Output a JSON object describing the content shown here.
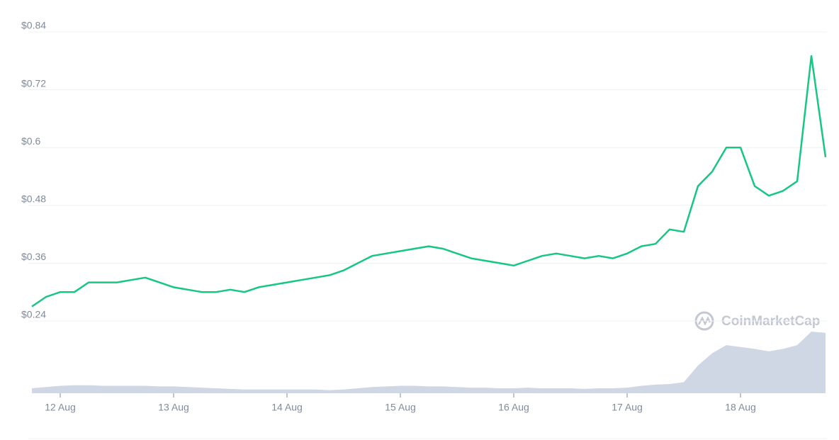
{
  "chart_data": {
    "type": "line",
    "watermark": "CoinMarketCap",
    "categories": [
      null,
      null,
      "12 Aug",
      null,
      null,
      null,
      null,
      null,
      null,
      null,
      "13 Aug",
      null,
      null,
      null,
      null,
      null,
      null,
      null,
      "14 Aug",
      null,
      null,
      null,
      null,
      null,
      null,
      null,
      "15 Aug",
      null,
      null,
      null,
      null,
      null,
      null,
      null,
      "16 Aug",
      null,
      null,
      null,
      null,
      null,
      null,
      null,
      "17 Aug",
      null,
      null,
      null,
      null,
      null,
      null,
      null,
      "18 Aug",
      null,
      null,
      null,
      null,
      null,
      null
    ],
    "series": [
      {
        "color": "#16c784",
        "values": [
          0.27,
          0.29,
          0.3,
          0.3,
          0.32,
          0.32,
          0.32,
          0.325,
          0.33,
          0.32,
          0.31,
          0.305,
          0.3,
          0.3,
          0.305,
          0.3,
          0.31,
          0.315,
          0.32,
          0.325,
          0.33,
          0.335,
          0.345,
          0.36,
          0.375,
          0.38,
          0.385,
          0.39,
          0.395,
          0.39,
          0.38,
          0.37,
          0.365,
          0.36,
          0.355,
          0.365,
          0.375,
          0.38,
          0.375,
          0.37,
          0.375,
          0.37,
          0.38,
          0.395,
          0.4,
          0.43,
          0.425,
          0.52,
          0.55,
          0.6,
          0.6,
          0.52,
          0.5,
          0.51,
          0.53,
          0.79,
          0.58
        ]
      },
      {
        "color": "#cfd6e4",
        "axis": "y2",
        "values": [
          8,
          10,
          12,
          13,
          13,
          12,
          12,
          12,
          12,
          11,
          11,
          10,
          9,
          8,
          7,
          6,
          6,
          6,
          6,
          6,
          6,
          5,
          6,
          8,
          10,
          11,
          12,
          12,
          11,
          11,
          10,
          9,
          9,
          8,
          8,
          9,
          8,
          8,
          8,
          7,
          8,
          8,
          9,
          12,
          14,
          15,
          18,
          45,
          65,
          78,
          75,
          72,
          68,
          72,
          78,
          100,
          98
        ]
      }
    ],
    "ylim": [
      0.24,
      0.84
    ],
    "yticks": [
      {
        "value": 0.24,
        "label": "$0.24"
      },
      {
        "value": 0.36,
        "label": "$0.36"
      },
      {
        "value": 0.48,
        "label": "$0.48"
      },
      {
        "value": 0.6,
        "label": "$0.6"
      },
      {
        "value": 0.72,
        "label": "$0.72"
      },
      {
        "value": 0.84,
        "label": "$0.84"
      }
    ],
    "y2lim": [
      0,
      100
    ],
    "grid": true
  }
}
